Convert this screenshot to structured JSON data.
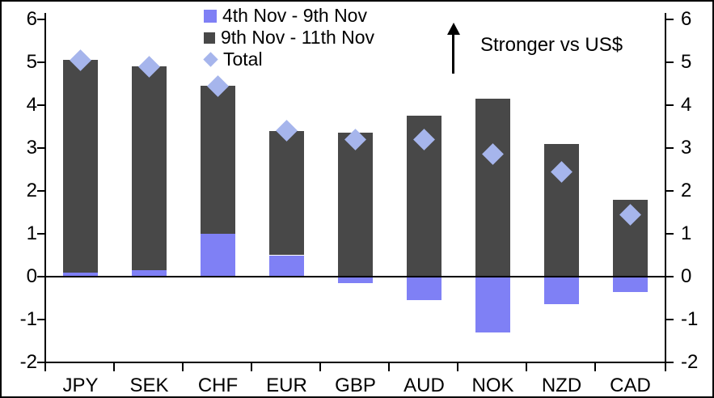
{
  "chart_data": {
    "type": "bar",
    "subtype": "stacked-bars-with-total-diamond-markers",
    "title": "",
    "categories": [
      "JPY",
      "SEK",
      "CHF",
      "EUR",
      "GBP",
      "AUD",
      "NOK",
      "NZD",
      "CAD"
    ],
    "series": [
      {
        "name": "4th Nov - 9th Nov",
        "color": "#7f80f5",
        "values": [
          0.1,
          0.15,
          1.0,
          0.5,
          -0.15,
          -0.55,
          -1.3,
          -0.65,
          -0.35
        ]
      },
      {
        "name": "9th Nov - 11th Nov",
        "color": "#484848",
        "values": [
          4.95,
          4.75,
          3.45,
          2.9,
          3.35,
          3.75,
          4.15,
          3.1,
          1.8
        ]
      }
    ],
    "totals": {
      "name": "Total",
      "marker": "diamond",
      "color": "#a6b5ec",
      "values": [
        5.05,
        4.9,
        4.45,
        3.4,
        3.2,
        3.2,
        2.85,
        2.45,
        1.45
      ]
    },
    "annotation": {
      "text": "Stronger vs US$",
      "arrow": "up"
    },
    "y_axis": {
      "min": -2,
      "max": 6,
      "tick_step": 1,
      "tick_labels": [
        "6",
        "5",
        "4",
        "3",
        "2",
        "1",
        "0",
        "-1",
        "-2"
      ],
      "sides": [
        "left",
        "right"
      ]
    },
    "legend_position": "top-center",
    "grid": false,
    "axis_color": "#000000",
    "background_color": "#ffffff"
  }
}
